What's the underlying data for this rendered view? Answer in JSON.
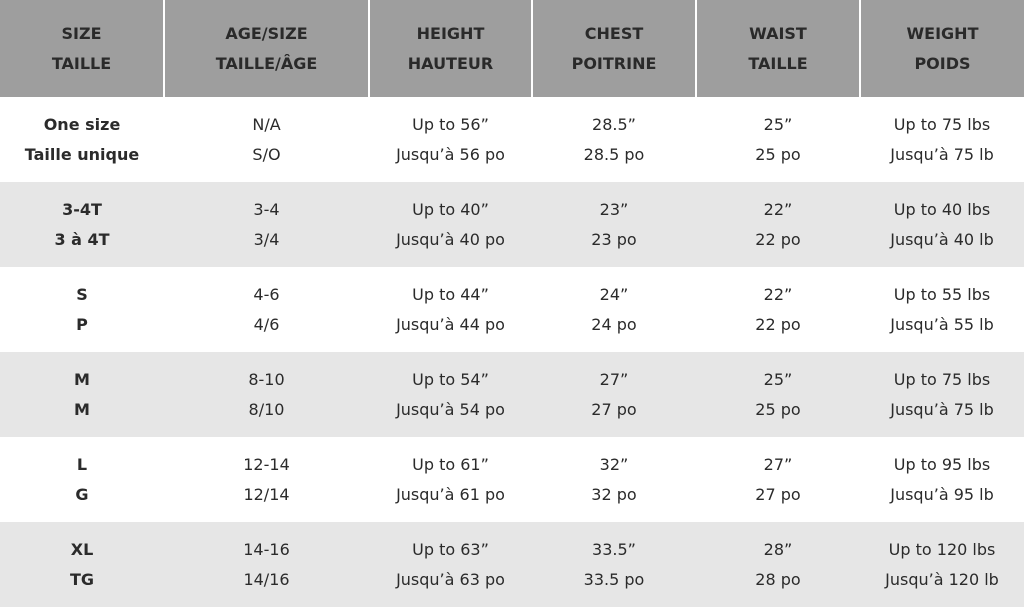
{
  "headers": [
    {
      "en": "SIZE",
      "fr": "TAILLE"
    },
    {
      "en": "AGE/SIZE",
      "fr": "TAILLE/ÂGE"
    },
    {
      "en": "HEIGHT",
      "fr": "HAUTEUR"
    },
    {
      "en": "CHEST",
      "fr": "POITRINE"
    },
    {
      "en": "WAIST",
      "fr": "TAILLE"
    },
    {
      "en": "WEIGHT",
      "fr": "POIDS"
    }
  ],
  "rows": [
    [
      {
        "en": "One size",
        "fr": "Taille unique"
      },
      {
        "en": "N/A",
        "fr": "S/O"
      },
      {
        "en": "Up to 56”",
        "fr": "Jusqu’à 56 po"
      },
      {
        "en": "28.5”",
        "fr": "28.5 po"
      },
      {
        "en": "25”",
        "fr": "25 po"
      },
      {
        "en": "Up to 75 lbs",
        "fr": "Jusqu’à 75 lb"
      }
    ],
    [
      {
        "en": "3-4T",
        "fr": "3 à 4T"
      },
      {
        "en": "3-4",
        "fr": "3/4"
      },
      {
        "en": "Up to 40”",
        "fr": "Jusqu’à 40 po"
      },
      {
        "en": "23”",
        "fr": "23 po"
      },
      {
        "en": "22”",
        "fr": "22 po"
      },
      {
        "en": "Up to 40 lbs",
        "fr": "Jusqu’à 40 lb"
      }
    ],
    [
      {
        "en": "S",
        "fr": "P"
      },
      {
        "en": "4-6",
        "fr": "4/6"
      },
      {
        "en": "Up to 44”",
        "fr": "Jusqu’à 44 po"
      },
      {
        "en": "24”",
        "fr": "24 po"
      },
      {
        "en": "22”",
        "fr": "22 po"
      },
      {
        "en": "Up to 55 lbs",
        "fr": "Jusqu’à 55 lb"
      }
    ],
    [
      {
        "en": "M",
        "fr": "M"
      },
      {
        "en": "8-10",
        "fr": "8/10"
      },
      {
        "en": "Up to 54”",
        "fr": "Jusqu’à 54 po"
      },
      {
        "en": "27”",
        "fr": "27 po"
      },
      {
        "en": "25”",
        "fr": "25 po"
      },
      {
        "en": "Up to 75 lbs",
        "fr": "Jusqu’à 75 lb"
      }
    ],
    [
      {
        "en": "L",
        "fr": "G"
      },
      {
        "en": "12-14",
        "fr": "12/14"
      },
      {
        "en": "Up to 61”",
        "fr": "Jusqu’à 61 po"
      },
      {
        "en": "32”",
        "fr": "32 po"
      },
      {
        "en": "27”",
        "fr": "27 po"
      },
      {
        "en": "Up to 95 lbs",
        "fr": "Jusqu’à 95 lb"
      }
    ],
    [
      {
        "en": "XL",
        "fr": "TG"
      },
      {
        "en": "14-16",
        "fr": "14/16"
      },
      {
        "en": "Up to 63”",
        "fr": "Jusqu’à 63 po"
      },
      {
        "en": "33.5”",
        "fr": "33.5 po"
      },
      {
        "en": "28”",
        "fr": "28 po"
      },
      {
        "en": "Up to 120 lbs",
        "fr": "Jusqu’à 120 lb"
      }
    ]
  ],
  "colors": {
    "header_bg": "#9e9e9e",
    "alt_row_bg": "#e6e6e6",
    "text": "#2b2b2b"
  }
}
